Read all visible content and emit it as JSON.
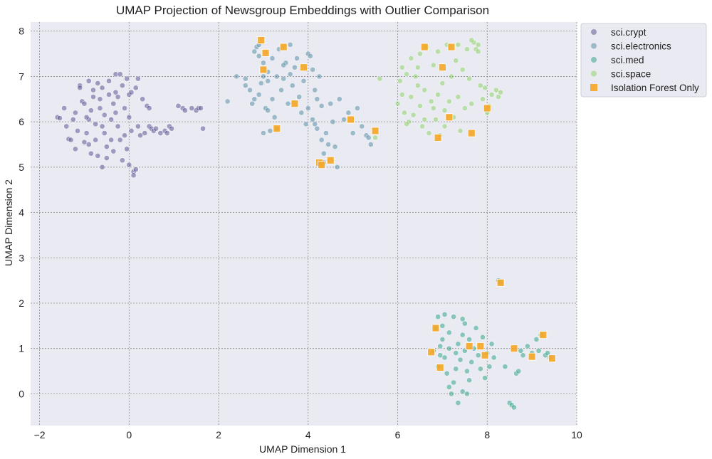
{
  "chart_data": {
    "type": "scatter",
    "title": "UMAP Projection of Newsgroup Embeddings with Outlier Comparison",
    "xlabel": "UMAP Dimension 1",
    "ylabel": "UMAP Dimension 2",
    "xlim": [
      -2.2,
      10.0
    ],
    "ylim": [
      -0.7,
      8.2
    ],
    "xticks": [
      -2,
      0,
      2,
      4,
      6,
      8,
      10
    ],
    "yticks": [
      0,
      1,
      2,
      3,
      4,
      5,
      6,
      7,
      8
    ],
    "grid": true,
    "legend_position": "outside-top-right",
    "series": [
      {
        "name": "sci.crypt",
        "marker": "circle",
        "color": "#5b5896",
        "points": [
          [
            -1.6,
            6.1
          ],
          [
            -1.55,
            6.08
          ],
          [
            -1.4,
            5.9
          ],
          [
            -1.35,
            5.62
          ],
          [
            -1.3,
            5.6
          ],
          [
            -1.25,
            6.05
          ],
          [
            -1.2,
            6.2
          ],
          [
            -1.15,
            5.8
          ],
          [
            -1.1,
            6.8
          ],
          [
            -1.1,
            6.75
          ],
          [
            -1.05,
            6.45
          ],
          [
            -1.0,
            6.4
          ],
          [
            -1.0,
            5.55
          ],
          [
            -0.95,
            5.75
          ],
          [
            -0.9,
            6.05
          ],
          [
            -0.9,
            5.5
          ],
          [
            -0.85,
            5.3
          ],
          [
            -0.85,
            6.25
          ],
          [
            -0.8,
            6.55
          ],
          [
            -0.8,
            6.7
          ],
          [
            -0.75,
            5.95
          ],
          [
            -0.75,
            5.6
          ],
          [
            -0.7,
            6.85
          ],
          [
            -0.7,
            5.25
          ],
          [
            -0.65,
            6.5
          ],
          [
            -0.65,
            6.3
          ],
          [
            -0.6,
            6.75
          ],
          [
            -0.6,
            5.9
          ],
          [
            -0.55,
            5.75
          ],
          [
            -0.55,
            6.15
          ],
          [
            -0.5,
            5.45
          ],
          [
            -0.5,
            5.2
          ],
          [
            -0.45,
            6.6
          ],
          [
            -0.45,
            6.9
          ],
          [
            -0.4,
            6.05
          ],
          [
            -0.4,
            5.6
          ],
          [
            -0.35,
            6.4
          ],
          [
            -0.35,
            5.35
          ],
          [
            -0.3,
            7.05
          ],
          [
            -0.3,
            6.2
          ],
          [
            -0.25,
            5.9
          ],
          [
            -0.25,
            6.55
          ],
          [
            -0.2,
            7.05
          ],
          [
            -0.2,
            5.6
          ],
          [
            -0.15,
            6.8
          ],
          [
            -0.15,
            5.15
          ],
          [
            -0.1,
            6.3
          ],
          [
            -0.1,
            5.7
          ],
          [
            -0.05,
            6.95
          ],
          [
            -0.05,
            5.4
          ],
          [
            0.0,
            6.6
          ],
          [
            0.0,
            6.1
          ],
          [
            0.0,
            5.05
          ],
          [
            0.05,
            6.65
          ],
          [
            0.05,
            5.8
          ],
          [
            0.1,
            4.9
          ],
          [
            0.1,
            4.82
          ],
          [
            0.15,
            4.95
          ],
          [
            0.15,
            6.75
          ],
          [
            0.2,
            5.9
          ],
          [
            0.2,
            6.95
          ],
          [
            0.3,
            6.5
          ],
          [
            0.35,
            5.75
          ],
          [
            0.4,
            6.35
          ],
          [
            0.45,
            6.3
          ],
          [
            0.45,
            5.9
          ],
          [
            0.5,
            5.85
          ],
          [
            0.55,
            5.8
          ],
          [
            0.6,
            5.85
          ],
          [
            0.8,
            5.8
          ],
          [
            0.85,
            5.75
          ],
          [
            0.9,
            5.9
          ],
          [
            0.95,
            5.85
          ],
          [
            1.1,
            6.35
          ],
          [
            1.2,
            6.3
          ],
          [
            1.25,
            6.25
          ],
          [
            1.4,
            6.3
          ],
          [
            1.5,
            6.25
          ],
          [
            1.55,
            6.3
          ],
          [
            1.6,
            6.3
          ],
          [
            1.65,
            5.85
          ],
          [
            -1.2,
            5.4
          ],
          [
            -0.95,
            6.1
          ],
          [
            -0.6,
            5.0
          ],
          [
            -0.3,
            6.65
          ],
          [
            0.25,
            5.7
          ],
          [
            0.7,
            5.75
          ],
          [
            -1.45,
            6.3
          ],
          [
            -0.9,
            6.9
          ]
        ]
      },
      {
        "name": "sci.electronics",
        "marker": "circle",
        "color": "#5b8fa8",
        "points": [
          [
            2.2,
            6.45
          ],
          [
            2.4,
            7.0
          ],
          [
            2.6,
            6.95
          ],
          [
            2.7,
            6.7
          ],
          [
            2.75,
            6.4
          ],
          [
            2.8,
            6.5
          ],
          [
            2.8,
            7.55
          ],
          [
            2.85,
            7.65
          ],
          [
            2.9,
            7.45
          ],
          [
            2.9,
            6.6
          ],
          [
            2.95,
            6.85
          ],
          [
            3.0,
            7.3
          ],
          [
            3.0,
            5.75
          ],
          [
            3.05,
            6.3
          ],
          [
            3.1,
            6.9
          ],
          [
            3.1,
            7.1
          ],
          [
            3.15,
            5.8
          ],
          [
            3.2,
            6.5
          ],
          [
            3.2,
            7.4
          ],
          [
            3.25,
            6.1
          ],
          [
            3.3,
            7.0
          ],
          [
            3.3,
            5.85
          ],
          [
            3.35,
            7.6
          ],
          [
            3.4,
            6.7
          ],
          [
            3.45,
            6.95
          ],
          [
            3.5,
            7.3
          ],
          [
            3.55,
            6.4
          ],
          [
            3.6,
            7.05
          ],
          [
            3.65,
            6.8
          ],
          [
            3.7,
            7.2
          ],
          [
            3.75,
            7.4
          ],
          [
            3.8,
            6.55
          ],
          [
            3.85,
            6.2
          ],
          [
            3.9,
            6.9
          ],
          [
            3.95,
            5.95
          ],
          [
            4.0,
            7.5
          ],
          [
            4.0,
            6.3
          ],
          [
            4.05,
            7.45
          ],
          [
            4.1,
            6.05
          ],
          [
            4.15,
            6.7
          ],
          [
            4.15,
            5.95
          ],
          [
            4.2,
            5.85
          ],
          [
            4.2,
            6.5
          ],
          [
            4.25,
            7.0
          ],
          [
            4.3,
            5.6
          ],
          [
            4.35,
            5.3
          ],
          [
            4.35,
            5.1
          ],
          [
            4.4,
            5.75
          ],
          [
            4.45,
            5.5
          ],
          [
            4.5,
            6.4
          ],
          [
            4.55,
            6.0
          ],
          [
            4.6,
            5.45
          ],
          [
            4.65,
            5.0
          ],
          [
            4.7,
            6.5
          ],
          [
            4.8,
            6.05
          ],
          [
            4.9,
            6.2
          ],
          [
            5.0,
            5.75
          ],
          [
            5.1,
            6.3
          ],
          [
            5.2,
            5.9
          ],
          [
            5.3,
            5.7
          ],
          [
            5.35,
            5.65
          ],
          [
            5.4,
            5.5
          ],
          [
            3.0,
            7.0
          ],
          [
            2.9,
            7.7
          ],
          [
            3.6,
            7.7
          ],
          [
            3.45,
            7.25
          ],
          [
            3.1,
            6.25
          ],
          [
            4.1,
            7.15
          ],
          [
            4.3,
            6.35
          ],
          [
            2.6,
            6.8
          ]
        ]
      },
      {
        "name": "sci.med",
        "marker": "circle",
        "color": "#35a48a",
        "points": [
          [
            6.8,
            0.95
          ],
          [
            6.85,
            1.45
          ],
          [
            6.9,
            1.7
          ],
          [
            6.9,
            0.6
          ],
          [
            6.95,
            0.85
          ],
          [
            7.0,
            1.2
          ],
          [
            7.0,
            1.5
          ],
          [
            7.05,
            0.8
          ],
          [
            7.1,
            0.45
          ],
          [
            7.15,
            1.0
          ],
          [
            7.15,
            1.35
          ],
          [
            7.2,
            0.0
          ],
          [
            7.25,
            0.25
          ],
          [
            7.25,
            1.7
          ],
          [
            7.3,
            0.9
          ],
          [
            7.3,
            0.55
          ],
          [
            7.35,
            -0.2
          ],
          [
            7.35,
            1.1
          ],
          [
            7.4,
            0.75
          ],
          [
            7.45,
            0.05
          ],
          [
            7.45,
            1.3
          ],
          [
            7.5,
            1.55
          ],
          [
            7.5,
            0.95
          ],
          [
            7.55,
            0.5
          ],
          [
            7.6,
            1.2
          ],
          [
            7.6,
            0.3
          ],
          [
            7.65,
            0.7
          ],
          [
            7.7,
            1.0
          ],
          [
            7.75,
            1.45
          ],
          [
            7.8,
            0.85
          ],
          [
            7.85,
            0.55
          ],
          [
            7.9,
            1.25
          ],
          [
            7.95,
            0.35
          ],
          [
            8.0,
            0.9
          ],
          [
            8.05,
            0.6
          ],
          [
            8.1,
            1.1
          ],
          [
            8.15,
            0.8
          ],
          [
            8.25,
            2.5
          ],
          [
            8.3,
            2.45
          ],
          [
            8.4,
            0.6
          ],
          [
            8.5,
            -0.2
          ],
          [
            8.55,
            -0.25
          ],
          [
            8.6,
            -0.3
          ],
          [
            8.65,
            0.45
          ],
          [
            8.7,
            0.5
          ],
          [
            8.75,
            0.95
          ],
          [
            8.8,
            0.85
          ],
          [
            8.9,
            1.05
          ],
          [
            9.0,
            0.9
          ],
          [
            9.1,
            1.2
          ],
          [
            9.15,
            0.95
          ],
          [
            9.2,
            1.3
          ],
          [
            9.3,
            0.85
          ],
          [
            9.35,
            0.9
          ],
          [
            9.4,
            0.8
          ],
          [
            7.05,
            1.75
          ],
          [
            7.45,
            1.65
          ],
          [
            7.15,
            0.15
          ],
          [
            7.55,
            0.0
          ],
          [
            6.95,
            1.05
          ]
        ]
      },
      {
        "name": "sci.space",
        "marker": "circle",
        "color": "#8fd16e",
        "points": [
          [
            5.6,
            6.95
          ],
          [
            6.0,
            6.4
          ],
          [
            6.05,
            6.9
          ],
          [
            6.1,
            6.6
          ],
          [
            6.15,
            6.2
          ],
          [
            6.2,
            7.05
          ],
          [
            6.25,
            6.0
          ],
          [
            6.3,
            6.55
          ],
          [
            6.3,
            7.4
          ],
          [
            6.35,
            6.15
          ],
          [
            6.4,
            7.0
          ],
          [
            6.45,
            6.8
          ],
          [
            6.5,
            7.5
          ],
          [
            6.5,
            6.35
          ],
          [
            6.55,
            5.9
          ],
          [
            6.6,
            6.7
          ],
          [
            6.65,
            7.65
          ],
          [
            6.7,
            5.75
          ],
          [
            6.75,
            6.45
          ],
          [
            6.8,
            7.25
          ],
          [
            6.85,
            6.05
          ],
          [
            6.9,
            7.55
          ],
          [
            6.9,
            6.6
          ],
          [
            6.95,
            5.7
          ],
          [
            7.0,
            6.85
          ],
          [
            7.05,
            6.25
          ],
          [
            7.1,
            7.7
          ],
          [
            7.15,
            6.45
          ],
          [
            7.2,
            7.0
          ],
          [
            7.25,
            6.1
          ],
          [
            7.3,
            7.35
          ],
          [
            7.35,
            6.55
          ],
          [
            7.4,
            5.8
          ],
          [
            7.45,
            7.15
          ],
          [
            7.5,
            6.3
          ],
          [
            7.55,
            7.6
          ],
          [
            7.6,
            6.95
          ],
          [
            7.65,
            6.4
          ],
          [
            7.7,
            7.75
          ],
          [
            7.75,
            7.6
          ],
          [
            7.8,
            7.7
          ],
          [
            7.85,
            6.8
          ],
          [
            7.9,
            6.5
          ],
          [
            8.0,
            6.2
          ],
          [
            8.05,
            6.35
          ],
          [
            8.1,
            6.6
          ],
          [
            8.2,
            6.7
          ],
          [
            8.25,
            6.55
          ],
          [
            8.3,
            6.65
          ],
          [
            6.2,
            5.95
          ],
          [
            6.45,
            7.2
          ],
          [
            7.05,
            5.9
          ],
          [
            7.35,
            7.7
          ],
          [
            7.65,
            7.8
          ],
          [
            7.8,
            7.55
          ],
          [
            6.8,
            6.3
          ],
          [
            7.95,
            6.75
          ],
          [
            5.5,
            5.65
          ],
          [
            6.1,
            7.2
          ],
          [
            6.6,
            6.05
          ]
        ]
      },
      {
        "name": "Isolation Forest Only",
        "marker": "square",
        "color": "#f5a623",
        "points": [
          [
            2.95,
            7.8
          ],
          [
            3.0,
            7.15
          ],
          [
            3.05,
            7.52
          ],
          [
            3.3,
            5.85
          ],
          [
            3.45,
            7.65
          ],
          [
            3.7,
            6.4
          ],
          [
            3.9,
            7.2
          ],
          [
            4.25,
            5.1
          ],
          [
            4.3,
            5.05
          ],
          [
            4.5,
            5.15
          ],
          [
            4.95,
            6.05
          ],
          [
            5.5,
            5.8
          ],
          [
            6.6,
            7.65
          ],
          [
            6.9,
            5.65
          ],
          [
            7.0,
            7.2
          ],
          [
            7.15,
            6.1
          ],
          [
            7.2,
            7.65
          ],
          [
            7.65,
            5.75
          ],
          [
            8.0,
            6.3
          ],
          [
            8.3,
            2.45
          ],
          [
            6.75,
            0.92
          ],
          [
            6.85,
            1.45
          ],
          [
            6.95,
            0.58
          ],
          [
            7.6,
            1.05
          ],
          [
            7.85,
            1.05
          ],
          [
            7.95,
            0.85
          ],
          [
            8.6,
            1.0
          ],
          [
            9.0,
            0.82
          ],
          [
            9.25,
            1.3
          ],
          [
            9.45,
            0.78
          ]
        ]
      }
    ]
  }
}
